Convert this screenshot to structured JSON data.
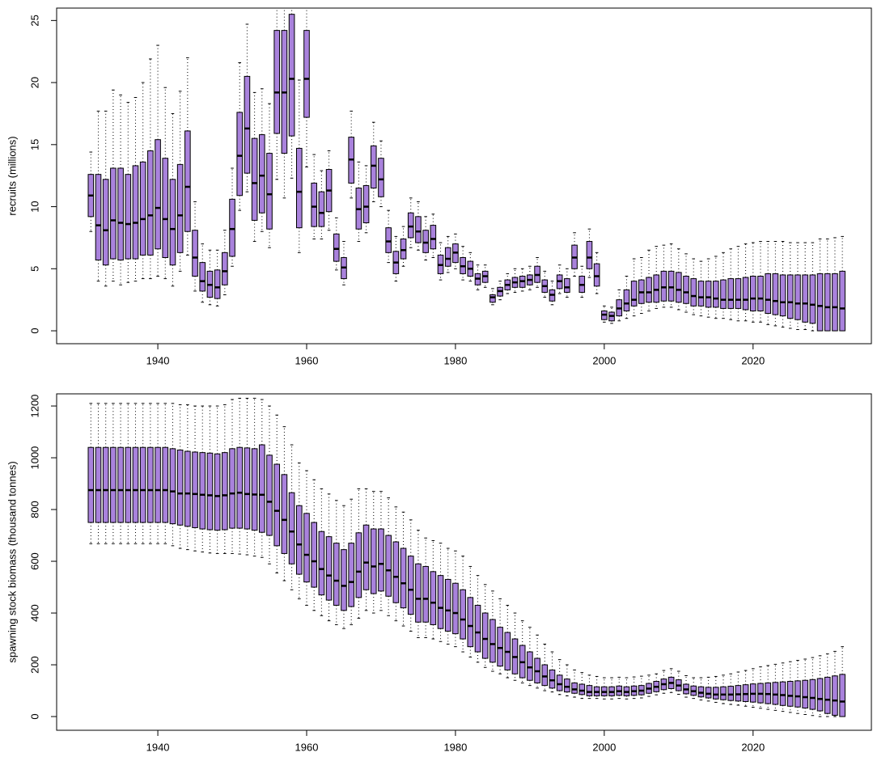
{
  "chart_data": [
    {
      "type": "boxplot",
      "ylabel": "recruits (millions)",
      "color": "#a982dc",
      "x": [
        1931,
        1932,
        1933,
        1934,
        1935,
        1936,
        1937,
        1938,
        1939,
        1940,
        1941,
        1942,
        1943,
        1944,
        1945,
        1946,
        1947,
        1948,
        1949,
        1950,
        1951,
        1952,
        1953,
        1954,
        1955,
        1956,
        1957,
        1958,
        1959,
        1960,
        1961,
        1962,
        1963,
        1964,
        1965,
        1966,
        1967,
        1968,
        1969,
        1970,
        1971,
        1972,
        1973,
        1974,
        1975,
        1976,
        1977,
        1978,
        1979,
        1980,
        1981,
        1982,
        1983,
        1984,
        1985,
        1986,
        1987,
        1988,
        1989,
        1990,
        1991,
        1992,
        1993,
        1994,
        1995,
        1996,
        1997,
        1998,
        1999,
        2000,
        2001,
        2002,
        2003,
        2004,
        2005,
        2006,
        2007,
        2008,
        2009,
        2010,
        2011,
        2012,
        2013,
        2014,
        2015,
        2016,
        2017,
        2018,
        2019,
        2020,
        2021,
        2022,
        2023,
        2024,
        2025,
        2026,
        2027,
        2028,
        2029,
        2030,
        2031,
        2032
      ],
      "whislo": [
        8.0,
        4.0,
        3.6,
        4.0,
        3.7,
        3.9,
        4.0,
        4.2,
        4.2,
        4.4,
        4.2,
        3.6,
        4.8,
        6.1,
        3.2,
        2.3,
        2.1,
        2.0,
        2.9,
        5.2,
        9.7,
        11.2,
        7.2,
        8.0,
        6.7,
        12.2,
        10.7,
        12.3,
        6.3,
        13.2,
        7.4,
        7.4,
        8.1,
        4.9,
        3.7,
        10.7,
        7.2,
        7.9,
        10.4,
        10.0,
        5.5,
        4.0,
        5.2,
        6.7,
        6.5,
        5.7,
        5.9,
        4.1,
        4.7,
        5.0,
        4.1,
        4.0,
        3.3,
        3.5,
        2.1,
        2.5,
        3.0,
        3.1,
        3.2,
        3.3,
        3.5,
        2.7,
        2.1,
        3.0,
        2.7,
        4.4,
        2.7,
        4.3,
        3.0,
        0.7,
        0.6,
        0.8,
        1.0,
        1.2,
        1.4,
        1.6,
        1.8,
        1.9,
        1.9,
        1.7,
        1.5,
        1.3,
        1.2,
        1.1,
        1.0,
        1.0,
        0.9,
        0.8,
        0.8,
        0.7,
        0.7,
        0.5,
        0.4,
        0.3,
        0.2,
        0.1,
        0.1,
        0,
        0,
        0,
        0,
        0
      ],
      "q1": [
        9.2,
        5.7,
        5.3,
        5.8,
        5.7,
        5.8,
        5.8,
        6.1,
        6.1,
        6.6,
        5.9,
        5.3,
        6.3,
        8.0,
        4.4,
        3.2,
        2.7,
        2.6,
        3.7,
        6.0,
        10.9,
        12.7,
        8.9,
        9.5,
        8.2,
        15.9,
        14.3,
        15.7,
        8.3,
        17.2,
        8.4,
        8.4,
        9.6,
        5.6,
        4.2,
        11.9,
        8.2,
        8.7,
        11.5,
        10.8,
        6.3,
        4.6,
        5.8,
        7.5,
        7.1,
        6.3,
        6.6,
        4.6,
        5.2,
        5.5,
        4.6,
        4.4,
        3.7,
        3.9,
        2.3,
        2.8,
        3.3,
        3.5,
        3.5,
        3.7,
        3.9,
        3.1,
        2.4,
        3.4,
        3.1,
        5.0,
        3.1,
        5.0,
        3.6,
        0.9,
        0.8,
        1.2,
        1.6,
        2.0,
        2.2,
        2.3,
        2.3,
        2.4,
        2.4,
        2.3,
        2.2,
        2.0,
        2.0,
        1.9,
        1.9,
        1.8,
        1.8,
        1.8,
        1.7,
        1.6,
        1.6,
        1.4,
        1.3,
        1.2,
        1.0,
        0.9,
        0.7,
        0.6,
        0,
        0,
        0,
        0
      ],
      "med": [
        10.9,
        8.5,
        8.1,
        8.9,
        8.7,
        8.6,
        8.7,
        9.0,
        9.3,
        9.9,
        9.0,
        8.2,
        9.3,
        11.6,
        5.9,
        4.0,
        3.7,
        3.5,
        4.8,
        8.2,
        14.1,
        16.3,
        11.9,
        12.5,
        11.0,
        19.2,
        19.2,
        20.3,
        11.2,
        20.3,
        10.0,
        9.5,
        11.3,
        6.6,
        5.1,
        13.8,
        9.8,
        10.0,
        13.3,
        12.2,
        7.2,
        5.5,
        6.5,
        8.4,
        8.0,
        7.1,
        7.4,
        5.3,
        5.8,
        6.3,
        5.2,
        5.0,
        4.2,
        4.4,
        2.7,
        3.2,
        3.7,
        3.9,
        4.0,
        4.1,
        4.5,
        3.6,
        2.9,
        4.0,
        3.5,
        5.9,
        3.7,
        5.9,
        4.4,
        1.3,
        1.2,
        1.8,
        2.2,
        2.5,
        3.1,
        3.1,
        3.3,
        3.5,
        3.5,
        3.3,
        3.1,
        2.8,
        2.7,
        2.7,
        2.6,
        2.5,
        2.5,
        2.5,
        2.5,
        2.6,
        2.6,
        2.5,
        2.4,
        2.3,
        2.3,
        2.2,
        2.2,
        2.1,
        2.0,
        1.9,
        1.9,
        1.8
      ],
      "q3": [
        12.6,
        12.6,
        12.2,
        13.1,
        13.1,
        12.6,
        13.3,
        13.6,
        14.5,
        15.4,
        13.9,
        12.2,
        13.4,
        16.1,
        8.1,
        5.5,
        4.8,
        4.9,
        6.3,
        10.6,
        17.6,
        20.5,
        15.5,
        15.8,
        14.3,
        24.2,
        24.2,
        25.5,
        14.7,
        24.2,
        11.9,
        11.2,
        13.0,
        7.8,
        5.9,
        15.6,
        11.5,
        11.7,
        14.9,
        13.9,
        8.3,
        6.4,
        7.4,
        9.5,
        9.2,
        8.1,
        8.5,
        6.1,
        6.7,
        7.0,
        5.9,
        5.6,
        4.6,
        4.8,
        2.9,
        3.5,
        4.1,
        4.3,
        4.4,
        4.5,
        5.2,
        4.1,
        3.3,
        4.5,
        4.2,
        6.9,
        4.4,
        7.2,
        5.4,
        1.6,
        1.5,
        2.5,
        3.3,
        4.0,
        4.1,
        4.3,
        4.5,
        4.8,
        4.8,
        4.7,
        4.4,
        4.2,
        4.0,
        4.0,
        4.0,
        4.1,
        4.2,
        4.2,
        4.3,
        4.4,
        4.4,
        4.6,
        4.6,
        4.5,
        4.5,
        4.5,
        4.5,
        4.5,
        4.6,
        4.6,
        4.6,
        4.8
      ],
      "whishi": [
        14.4,
        17.7,
        17.7,
        19.4,
        19.0,
        18.4,
        18.8,
        20.0,
        21.9,
        23.0,
        19.6,
        17.5,
        19.3,
        22.0,
        10.4,
        7.0,
        6.5,
        6.5,
        8.1,
        13.1,
        21.6,
        24.7,
        19.2,
        19.5,
        18.3,
        26.5,
        26.5,
        26.5,
        20.2,
        26.4,
        14.2,
        12.9,
        14.5,
        9.1,
        7.2,
        17.7,
        13.6,
        13.3,
        16.8,
        15.3,
        9.7,
        7.6,
        8.4,
        10.7,
        10.4,
        9.2,
        9.4,
        7.1,
        7.6,
        7.8,
        6.8,
        6.3,
        5.3,
        5.3,
        3.4,
        4.0,
        4.6,
        5.0,
        5.0,
        5.2,
        5.9,
        4.8,
        4.0,
        5.3,
        5.0,
        7.9,
        5.2,
        8.2,
        6.3,
        2.0,
        1.9,
        3.3,
        4.4,
        5.8,
        5.9,
        6.5,
        6.8,
        6.9,
        7.0,
        6.6,
        6.2,
        5.8,
        5.6,
        5.8,
        6.0,
        6.3,
        6.6,
        6.8,
        7.0,
        7.1,
        7.2,
        7.2,
        7.2,
        7.2,
        7.1,
        7.1,
        7.1,
        7.1,
        7.4,
        7.4,
        7.5,
        7.6
      ],
      "xlim": [
        1926.4,
        2035.9
      ],
      "xticks": [
        1940,
        1960,
        1980,
        2000,
        2020
      ],
      "ylim": [
        -1.04,
        26.0
      ],
      "yticks": [
        0,
        5,
        10,
        15,
        20,
        25
      ]
    },
    {
      "type": "boxplot",
      "ylabel": "spawning stock biomass (thousand tonnes)",
      "color": "#a982dc",
      "x": [
        1931,
        1932,
        1933,
        1934,
        1935,
        1936,
        1937,
        1938,
        1939,
        1940,
        1941,
        1942,
        1943,
        1944,
        1945,
        1946,
        1947,
        1948,
        1949,
        1950,
        1951,
        1952,
        1953,
        1954,
        1955,
        1956,
        1957,
        1958,
        1959,
        1960,
        1961,
        1962,
        1963,
        1964,
        1965,
        1966,
        1967,
        1968,
        1969,
        1970,
        1971,
        1972,
        1973,
        1974,
        1975,
        1976,
        1977,
        1978,
        1979,
        1980,
        1981,
        1982,
        1983,
        1984,
        1985,
        1986,
        1987,
        1988,
        1989,
        1990,
        1991,
        1992,
        1993,
        1994,
        1995,
        1996,
        1997,
        1998,
        1999,
        2000,
        2001,
        2002,
        2003,
        2004,
        2005,
        2006,
        2007,
        2008,
        2009,
        2010,
        2011,
        2012,
        2013,
        2014,
        2015,
        2016,
        2017,
        2018,
        2019,
        2020,
        2021,
        2022,
        2023,
        2024,
        2025,
        2026,
        2027,
        2028,
        2029,
        2030,
        2031,
        2032
      ],
      "whislo": [
        668,
        668,
        668,
        668,
        668,
        668,
        668,
        668,
        668,
        668,
        668,
        660,
        650,
        645,
        640,
        636,
        632,
        630,
        630,
        630,
        628,
        625,
        620,
        615,
        590,
        555,
        525,
        490,
        455,
        430,
        410,
        390,
        370,
        355,
        340,
        355,
        380,
        410,
        400,
        410,
        390,
        370,
        350,
        330,
        305,
        305,
        300,
        290,
        280,
        270,
        250,
        230,
        210,
        190,
        175,
        165,
        150,
        140,
        130,
        120,
        110,
        100,
        95,
        85,
        80,
        75,
        70,
        70,
        70,
        68,
        68,
        70,
        68,
        70,
        72,
        78,
        84,
        90,
        93,
        86,
        75,
        70,
        64,
        60,
        55,
        50,
        47,
        44,
        40,
        36,
        32,
        28,
        24,
        20,
        16,
        12,
        8,
        4,
        0,
        0,
        0,
        0
      ],
      "q1": [
        750,
        750,
        750,
        750,
        750,
        750,
        750,
        750,
        750,
        750,
        750,
        745,
        740,
        735,
        730,
        725,
        722,
        720,
        722,
        728,
        728,
        725,
        720,
        712,
        700,
        660,
        630,
        590,
        550,
        520,
        500,
        470,
        450,
        430,
        410,
        425,
        460,
        490,
        475,
        485,
        465,
        440,
        420,
        395,
        365,
        365,
        355,
        340,
        330,
        320,
        300,
        270,
        250,
        225,
        210,
        195,
        180,
        165,
        150,
        140,
        130,
        120,
        110,
        100,
        95,
        90,
        85,
        80,
        80,
        80,
        80,
        82,
        80,
        82,
        84,
        90,
        96,
        104,
        108,
        100,
        88,
        82,
        76,
        72,
        68,
        65,
        62,
        60,
        58,
        56,
        53,
        50,
        47,
        43,
        40,
        37,
        33,
        28,
        22,
        12,
        5,
        0
      ],
      "med": [
        875,
        875,
        875,
        875,
        875,
        875,
        875,
        875,
        875,
        875,
        875,
        870,
        862,
        862,
        860,
        857,
        855,
        852,
        855,
        862,
        865,
        860,
        858,
        857,
        830,
        795,
        760,
        715,
        665,
        625,
        600,
        570,
        545,
        525,
        505,
        520,
        560,
        595,
        580,
        590,
        565,
        540,
        515,
        490,
        455,
        455,
        440,
        420,
        410,
        400,
        375,
        350,
        325,
        300,
        280,
        265,
        250,
        230,
        210,
        190,
        175,
        155,
        140,
        125,
        115,
        105,
        100,
        95,
        95,
        95,
        95,
        98,
        95,
        98,
        100,
        108,
        115,
        125,
        130,
        120,
        105,
        98,
        92,
        88,
        85,
        85,
        85,
        86,
        87,
        88,
        88,
        87,
        85,
        83,
        80,
        78,
        75,
        72,
        68,
        65,
        62,
        58
      ],
      "q3": [
        1040,
        1040,
        1040,
        1040,
        1040,
        1040,
        1040,
        1040,
        1040,
        1040,
        1040,
        1035,
        1030,
        1025,
        1022,
        1020,
        1018,
        1015,
        1020,
        1035,
        1040,
        1038,
        1035,
        1050,
        1010,
        975,
        935,
        865,
        815,
        785,
        750,
        715,
        695,
        670,
        645,
        670,
        710,
        740,
        725,
        725,
        700,
        675,
        650,
        620,
        590,
        580,
        560,
        545,
        530,
        515,
        490,
        460,
        430,
        400,
        375,
        345,
        325,
        300,
        275,
        250,
        225,
        200,
        180,
        160,
        145,
        130,
        125,
        120,
        115,
        115,
        115,
        118,
        115,
        118,
        120,
        128,
        136,
        145,
        152,
        142,
        125,
        118,
        115,
        113,
        113,
        115,
        117,
        120,
        123,
        126,
        128,
        130,
        132,
        134,
        136,
        138,
        140,
        143,
        147,
        152,
        157,
        163
      ],
      "whishi": [
        1210,
        1210,
        1210,
        1210,
        1210,
        1210,
        1210,
        1210,
        1210,
        1210,
        1210,
        1210,
        1205,
        1205,
        1200,
        1200,
        1200,
        1200,
        1205,
        1225,
        1230,
        1230,
        1230,
        1225,
        1200,
        1165,
        1120,
        1050,
        980,
        950,
        915,
        880,
        860,
        835,
        815,
        840,
        880,
        880,
        870,
        870,
        845,
        810,
        790,
        760,
        720,
        690,
        680,
        670,
        650,
        640,
        620,
        580,
        545,
        510,
        485,
        455,
        430,
        400,
        370,
        345,
        315,
        280,
        250,
        220,
        200,
        180,
        170,
        160,
        155,
        150,
        150,
        152,
        150,
        153,
        156,
        160,
        165,
        178,
        185,
        175,
        158,
        150,
        150,
        152,
        155,
        160,
        165,
        172,
        178,
        185,
        192,
        197,
        202,
        207,
        212,
        217,
        222,
        228,
        235,
        242,
        252,
        270
      ],
      "xlim": [
        1926.4,
        2035.9
      ],
      "xticks": [
        1940,
        1960,
        1980,
        2000,
        2020
      ],
      "ylim": [
        -53,
        1247
      ],
      "yticks": [
        0,
        200,
        400,
        600,
        800,
        1000,
        1200
      ]
    }
  ]
}
